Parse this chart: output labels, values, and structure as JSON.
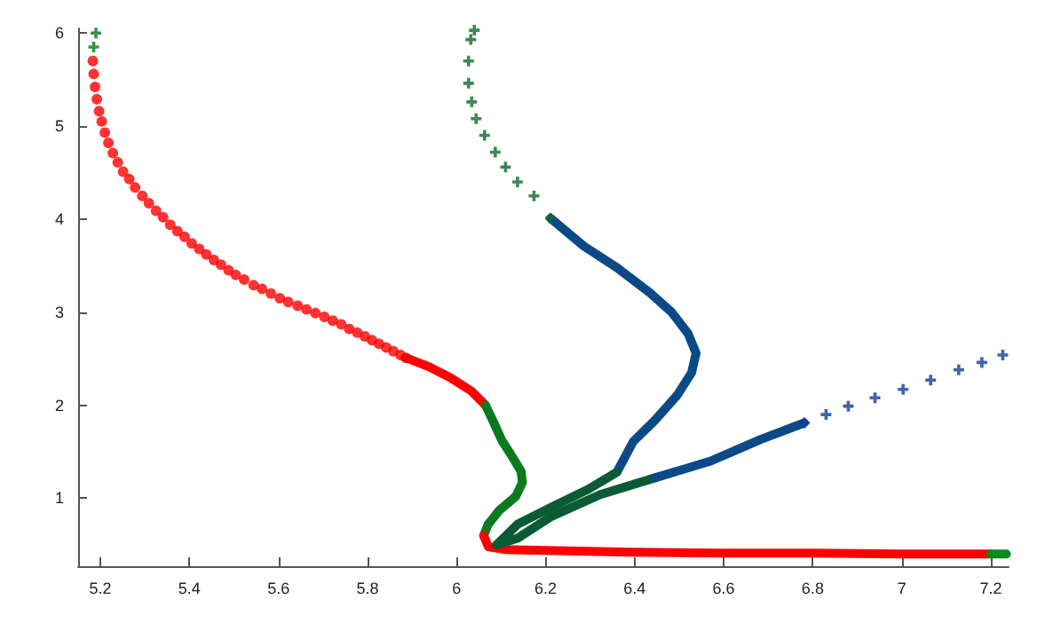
{
  "chart_data": {
    "type": "scatter",
    "xlim": [
      5.15,
      7.24
    ],
    "ylim": [
      0.27,
      6.05
    ],
    "xticks": [
      5.2,
      5.4,
      5.6,
      5.8,
      6,
      6.2,
      6.4,
      6.6,
      6.8,
      7,
      7.2
    ],
    "yticks": [
      1,
      2,
      3,
      4,
      5,
      6
    ],
    "grid": false,
    "series": [
      {
        "marker": "cross",
        "color": "#007a1e",
        "x": [
          5.19,
          5.185
        ],
        "values": [
          6.0,
          5.85
        ]
      },
      {
        "marker": "circle",
        "color": "#ff0000",
        "x": [
          5.183,
          5.185,
          5.188,
          5.192,
          5.197,
          5.203,
          5.21,
          5.218,
          5.228,
          5.239,
          5.251,
          5.265,
          5.278,
          5.294,
          5.309,
          5.325,
          5.341,
          5.357,
          5.373,
          5.389,
          5.405,
          5.422,
          5.438,
          5.455,
          5.471,
          5.488,
          5.504,
          5.523,
          5.544,
          5.563,
          5.583,
          5.603,
          5.622,
          5.643,
          5.663,
          5.683,
          5.703,
          5.722,
          5.741,
          5.759,
          5.777,
          5.794,
          5.81,
          5.826,
          5.842,
          5.858,
          5.874,
          5.886
        ],
        "values": [
          5.7,
          5.56,
          5.42,
          5.29,
          5.16,
          5.05,
          4.93,
          4.82,
          4.71,
          4.61,
          4.51,
          4.43,
          4.34,
          4.25,
          4.17,
          4.09,
          4.02,
          3.94,
          3.87,
          3.81,
          3.74,
          3.68,
          3.62,
          3.56,
          3.51,
          3.45,
          3.4,
          3.35,
          3.29,
          3.25,
          3.2,
          3.15,
          3.11,
          3.07,
          3.03,
          2.99,
          2.95,
          2.91,
          2.87,
          2.82,
          2.78,
          2.74,
          2.7,
          2.66,
          2.62,
          2.58,
          2.54,
          2.51
        ]
      },
      {
        "type": "line",
        "marker": "none",
        "color": "#ff0000",
        "x": [
          5.886,
          5.935,
          5.985,
          6.034,
          6.065
        ],
        "values": [
          2.51,
          2.42,
          2.3,
          2.15,
          2.0
        ]
      },
      {
        "type": "line",
        "marker": "none",
        "color": "#0a7a1e",
        "x": [
          6.065,
          6.083,
          6.102,
          6.126,
          6.145,
          6.148,
          6.133,
          6.096,
          6.071,
          6.061
        ],
        "values": [
          2.0,
          1.82,
          1.62,
          1.44,
          1.29,
          1.17,
          1.02,
          0.87,
          0.72,
          0.6
        ]
      },
      {
        "type": "line",
        "marker": "none",
        "color": "#ff0000",
        "x": [
          6.061,
          6.071,
          6.108,
          6.2,
          6.4,
          6.6,
          6.8,
          7.0,
          7.2
        ],
        "values": [
          0.6,
          0.48,
          0.45,
          0.44,
          0.42,
          0.41,
          0.41,
          0.4,
          0.4
        ]
      },
      {
        "type": "line",
        "marker": "none",
        "color": "#0a8a1e",
        "x": [
          7.2,
          7.235
        ],
        "values": [
          0.4,
          0.4
        ]
      },
      {
        "marker": "cross",
        "color": "#0b6a2e",
        "x": [
          6.04,
          6.032,
          6.027,
          6.027,
          6.034,
          6.044,
          6.063,
          6.087,
          6.11,
          6.137,
          6.174,
          6.211
        ],
        "values": [
          6.03,
          5.93,
          5.7,
          5.46,
          5.26,
          5.08,
          4.9,
          4.72,
          4.56,
          4.4,
          4.25,
          4.01
        ]
      },
      {
        "type": "line",
        "marker": "none",
        "color": "#0b4a86",
        "x": [
          6.211,
          6.286,
          6.36,
          6.434,
          6.483,
          6.52,
          6.538,
          6.528,
          6.496,
          6.446,
          6.397,
          6.36
        ],
        "values": [
          4.01,
          3.71,
          3.48,
          3.21,
          3.0,
          2.77,
          2.56,
          2.35,
          2.11,
          1.84,
          1.61,
          1.28
        ]
      },
      {
        "type": "line",
        "marker": "none",
        "color": "#0b5a36",
        "x": [
          6.36,
          6.297,
          6.211,
          6.137,
          6.09
        ],
        "values": [
          1.28,
          1.1,
          0.9,
          0.72,
          0.5
        ]
      },
      {
        "type": "line",
        "marker": "none",
        "color": "#0b5a36",
        "x": [
          6.09,
          6.137,
          6.211,
          6.323,
          6.446
        ],
        "values": [
          0.5,
          0.57,
          0.8,
          1.04,
          1.22
        ]
      },
      {
        "type": "line",
        "marker": "none",
        "color": "#0b4a86",
        "x": [
          6.446,
          6.571,
          6.682,
          6.781
        ],
        "values": [
          1.22,
          1.4,
          1.63,
          1.81
        ]
      },
      {
        "marker": "cross",
        "color": "#0b3f96",
        "x": [
          6.781,
          6.83,
          6.88,
          6.94,
          7.003,
          7.065,
          7.128,
          7.18,
          7.227
        ],
        "values": [
          1.81,
          1.9,
          1.99,
          2.08,
          2.17,
          2.27,
          2.38,
          2.46,
          2.54
        ]
      }
    ]
  }
}
